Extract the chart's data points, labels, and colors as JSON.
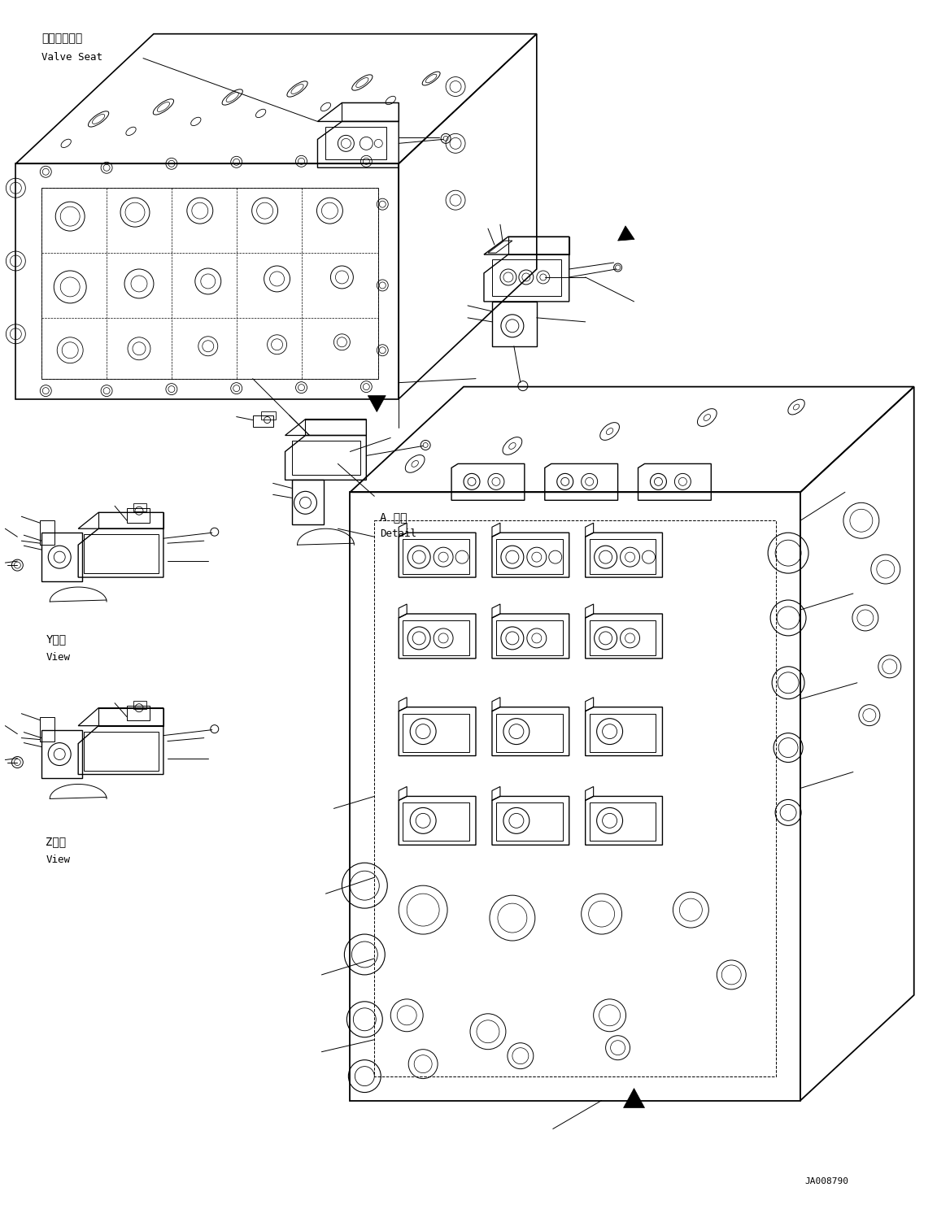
{
  "background_color": "#ffffff",
  "figure_width": 11.68,
  "figure_height": 14.87,
  "dpi": 100,
  "text_color": "#000000",
  "line_color": "#000000",
  "label_valve_seat_ja": "バルブシート",
  "label_valve_seat_en": "Valve Seat",
  "label_y_view_ja": "Y　視",
  "label_y_view_en": "View",
  "label_z_view_ja": "Z　視",
  "label_z_view_en": "View",
  "label_a_detail_ja": "A 詳細",
  "label_a_detail_en": "Detail",
  "label_ja_code": "JA008790"
}
